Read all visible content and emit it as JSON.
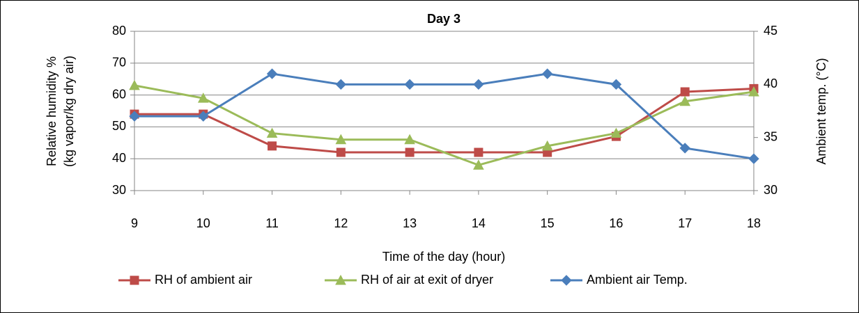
{
  "chart_data": {
    "type": "line",
    "title": "Day 3",
    "xlabel": "Time of the day (hour)",
    "ylabel": [
      "Relative humidity %",
      "(kg vapor/kg dry air)"
    ],
    "y2label": "Ambient temp.  (°C)",
    "x": [
      9,
      10,
      11,
      12,
      13,
      14,
      15,
      16,
      17,
      18
    ],
    "xlim": [
      9,
      18
    ],
    "xticks": [
      9,
      10,
      11,
      12,
      13,
      14,
      15,
      16,
      17,
      18
    ],
    "ylim": [
      30,
      80
    ],
    "yticks": [
      30,
      40,
      50,
      60,
      70,
      80
    ],
    "y2lim": [
      30,
      45
    ],
    "y2ticks": [
      30,
      35,
      40,
      45
    ],
    "grid": true,
    "legend": "bottom",
    "series": [
      {
        "name": "RH of ambient air",
        "color": "#be4b48",
        "marker": "square",
        "values": [
          54,
          54,
          44,
          42,
          42,
          42,
          42,
          47,
          61,
          62
        ]
      },
      {
        "name": "RH of air at exit of dryer",
        "color": "#9bbb59",
        "marker": "triangle",
        "values": [
          63,
          59,
          48,
          46,
          46,
          38,
          44,
          48,
          58,
          61
        ]
      },
      {
        "name": "Ambient air Temp.",
        "color": "#4a7ebb",
        "marker": "diamond",
        "axis": "y2",
        "values": [
          37,
          37,
          41,
          40,
          40,
          40,
          41,
          40,
          34,
          33
        ]
      }
    ]
  }
}
